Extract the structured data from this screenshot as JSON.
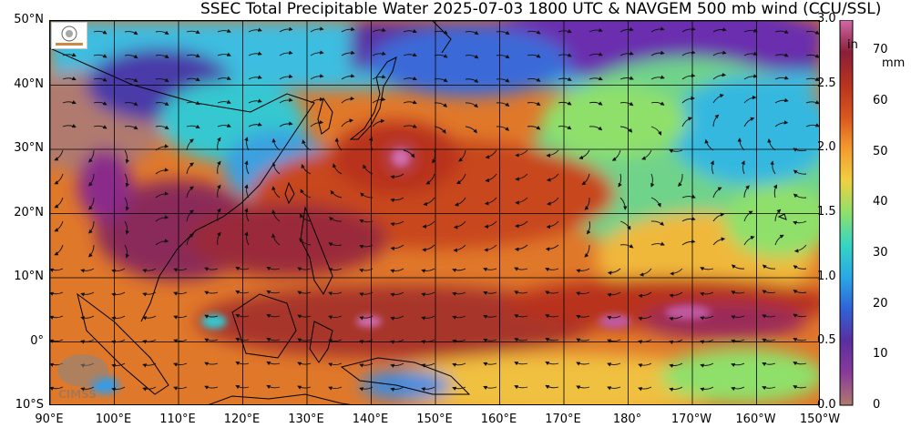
{
  "title": "SSEC Total Precipitable Water  2025-07-03 1800 UTC & NAVGEM 500 mb wind (CCU/SSL)",
  "map": {
    "lat_labels": [
      "50°N",
      "40°N",
      "30°N",
      "20°N",
      "10°N",
      "0°",
      "10°S"
    ],
    "lon_labels": [
      "90°E",
      "100°E",
      "110°E",
      "120°E",
      "130°E",
      "140°E",
      "150°E",
      "160°E",
      "170°E",
      "180°",
      "170°W",
      "160°W",
      "150°W"
    ],
    "lat_values": [
      50,
      40,
      30,
      20,
      10,
      0,
      -10
    ],
    "lon_values": [
      90,
      100,
      110,
      120,
      130,
      140,
      150,
      160,
      170,
      180,
      190,
      200,
      210
    ],
    "lat_range": [
      -10,
      50
    ],
    "lon_range": [
      90,
      210
    ],
    "grid": true,
    "watermark_text": "CIMSS"
  },
  "colorbar": {
    "inch_unit": "in",
    "mm_unit": "mm",
    "inch_ticks": [
      "0.0",
      "0.5",
      "1.0",
      "1.5",
      "2.0",
      "2.5",
      "3.0"
    ],
    "inch_values": [
      0.0,
      0.5,
      1.0,
      1.5,
      2.0,
      2.5,
      3.0
    ],
    "mm_ticks": [
      "0",
      "10",
      "20",
      "30",
      "40",
      "50",
      "60",
      "70"
    ],
    "mm_values": [
      0,
      10,
      20,
      30,
      40,
      50,
      60,
      70
    ],
    "range_mm": [
      0,
      76
    ],
    "colors": [
      "#b07a6e",
      "#8a3a9a",
      "#5a2fa0",
      "#2f63d8",
      "#29a9e6",
      "#35d6c4",
      "#8fe06a",
      "#f0d040",
      "#f59a2e",
      "#d9551e",
      "#b8321f",
      "#8a1f3a",
      "#d06aa8"
    ]
  }
}
